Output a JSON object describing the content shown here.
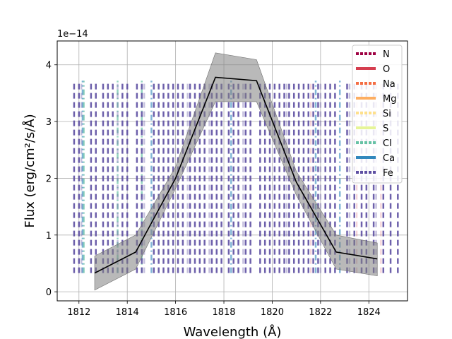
{
  "chart_data": {
    "type": "line",
    "xlabel": "Wavelength (Å)",
    "ylabel": "Flux (erg/cm²/s/Å)",
    "y_offset_label": "1e−14",
    "scale": 1e-14,
    "xlim": [
      1811.1,
      1825.6
    ],
    "ylim": [
      -0.16,
      4.42
    ],
    "grid": true,
    "x_ticks": [
      1812,
      1814,
      1816,
      1818,
      1820,
      1822,
      1824
    ],
    "y_ticks": [
      0,
      1,
      2,
      3,
      4
    ],
    "flux": {
      "name": "Flux",
      "color": "#000000",
      "x": [
        1812.65,
        1814.35,
        1816.0,
        1817.65,
        1819.35,
        1821.0,
        1822.65,
        1824.35
      ],
      "y": [
        0.33,
        0.7,
        2.0,
        3.78,
        3.72,
        1.93,
        0.7,
        0.58
      ]
    },
    "error_band": {
      "name": "Flux error",
      "color": "#808080",
      "x": [
        1812.65,
        1814.35,
        1816.0,
        1817.65,
        1819.35,
        1821.0,
        1822.65,
        1824.35
      ],
      "lower": [
        0.03,
        0.4,
        1.82,
        3.35,
        3.35,
        1.7,
        0.4,
        0.28
      ],
      "upper": [
        0.63,
        1.0,
        2.2,
        4.21,
        4.09,
        2.12,
        1.0,
        0.86
      ]
    },
    "line_marker_range": [
      0.33,
      3.72
    ],
    "legend_position": "top-right",
    "legend": [
      {
        "label": "N",
        "color": "#9e0142",
        "dash": "4,2"
      },
      {
        "label": "O",
        "color": "#d53e4f",
        "dash": ""
      },
      {
        "label": "Na",
        "color": "#f46d43",
        "dash": "4,2"
      },
      {
        "label": "Mg",
        "color": "#fdae61",
        "dash": ""
      },
      {
        "label": "Si",
        "color": "#fee08b",
        "dash": "4,2"
      },
      {
        "label": "S",
        "color": "#e6f598",
        "dash": ""
      },
      {
        "label": "Cl",
        "color": "#66c2a5",
        "dash": "4,2"
      },
      {
        "label": "Ca",
        "color": "#3288bd",
        "dash": ""
      },
      {
        "label": "Fe",
        "color": "#5e4fa2",
        "dash": "4,2"
      }
    ],
    "fe_lines": [
      1811.8,
      1812.0,
      1812.5,
      1812.7,
      1813.0,
      1813.2,
      1813.4,
      1813.8,
      1814.0,
      1814.4,
      1814.6,
      1815.1,
      1815.3,
      1815.5,
      1815.7,
      1815.9,
      1816.1,
      1816.3,
      1816.6,
      1816.8,
      1817.0,
      1817.2,
      1817.5,
      1817.7,
      1817.9,
      1818.2,
      1818.4,
      1818.6,
      1818.9,
      1819.1,
      1819.5,
      1819.7,
      1819.9,
      1820.1,
      1820.3,
      1820.5,
      1820.7,
      1820.9,
      1821.1,
      1821.3,
      1821.5,
      1821.7,
      1821.9,
      1822.2,
      1822.4,
      1822.6,
      1823.1,
      1823.4,
      1823.7,
      1823.9,
      1824.2,
      1824.6,
      1824.9,
      1825.2
    ],
    "fe_faint_lines": [
      1812.1,
      1813.6,
      1814.7,
      1816.5,
      1817.4,
      1818.8,
      1820.6,
      1822.0,
      1823.2,
      1824.3
    ],
    "teal_lines": [
      1812.2,
      1813.6,
      1814.6
    ],
    "red_lines": [
      1821.6,
      1823.5,
      1824.5
    ],
    "blue_lines": [
      1812.15,
      1815.0,
      1818.3,
      1821.8,
      1822.8
    ]
  }
}
